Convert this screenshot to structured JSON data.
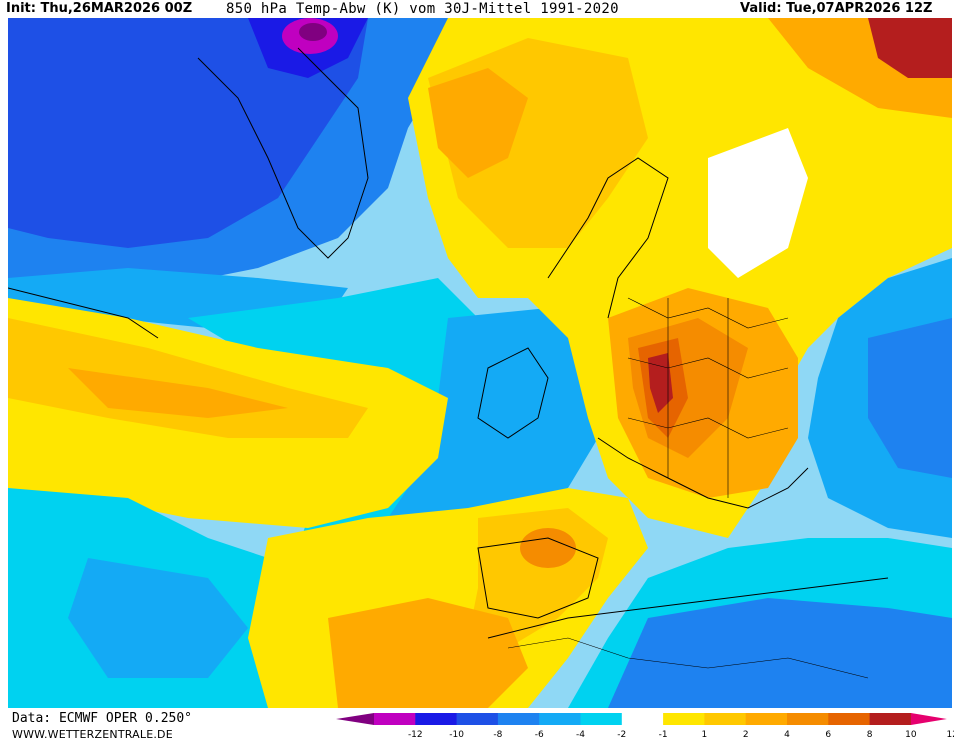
{
  "header": {
    "init_label": "Init: Thu,26MAR2026 00Z",
    "main_label": "850 hPa Temp-Abw (K) vom 30J-Mittel 1991-2020",
    "valid_label": "Valid: Tue,07APR2026 12Z"
  },
  "footer": {
    "data_source": "Data: ECMWF OPER 0.250°",
    "site": "WWW.WETTERZENTRALE.DE"
  },
  "legend": {
    "ticks": [
      "-12",
      "-10",
      "-8",
      "-6",
      "-4",
      "-2",
      "-1",
      "1",
      "2",
      "4",
      "6",
      "8",
      "10",
      "12"
    ],
    "colors": {
      "below_min": "#800080",
      "c0": "#c000c0",
      "c1": "#1a1ae6",
      "c2": "#1e50e6",
      "c3": "#1e82f0",
      "c4": "#14aaf5",
      "c5": "#00d2f0",
      "c6": "#ffffff",
      "c7": "#ffe600",
      "c8": "#ffc800",
      "c9": "#ffaa00",
      "c10": "#f58c00",
      "c11": "#e66400",
      "c12": "#b41e1e",
      "above_max": "#e6006e"
    }
  }
}
